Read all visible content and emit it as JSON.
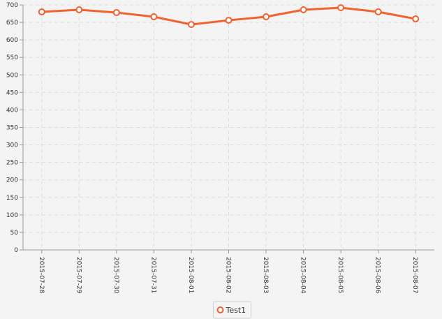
{
  "chart_data": {
    "type": "line",
    "categories": [
      "2015-07-28",
      "2015-07-29",
      "2015-07-30",
      "2015-07-31",
      "2015-08-01",
      "2015-08-02",
      "2015-08-03",
      "2015-08-04",
      "2015-08-05",
      "2015-08-06",
      "2015-08-07"
    ],
    "series": [
      {
        "name": "Test1",
        "color": "#f3622d",
        "values": [
          680,
          686,
          678,
          666,
          644,
          656,
          666,
          686,
          692,
          680,
          660
        ]
      }
    ],
    "ylim": [
      0,
      700
    ],
    "yticks": [
      0,
      50,
      100,
      150,
      200,
      250,
      300,
      350,
      400,
      450,
      500,
      550,
      600,
      650,
      700
    ],
    "grid": true,
    "legend": "bottom"
  }
}
